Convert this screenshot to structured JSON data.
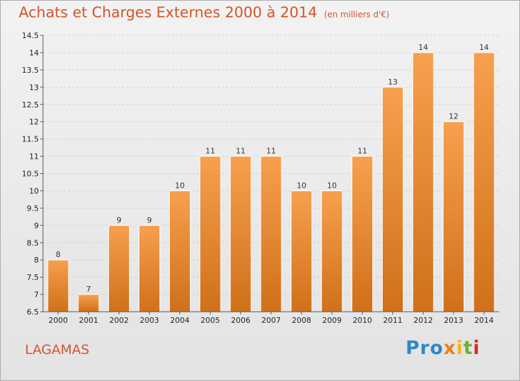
{
  "title": "Achats et Charges Externes 2000 à 2014",
  "unit": "(en milliers d'€)",
  "commune": "LAGAMAS",
  "logo_parts": [
    "Pro",
    "x",
    "i",
    "t",
    "i"
  ],
  "colors": {
    "bar_light": "#f7a04e",
    "bar_dark": "#d0701a",
    "title": "#d4552a"
  },
  "chart_data": {
    "type": "bar",
    "categories": [
      "2000",
      "2001",
      "2002",
      "2003",
      "2004",
      "2005",
      "2006",
      "2007",
      "2008",
      "2009",
      "2010",
      "2011",
      "2012",
      "2013",
      "2014"
    ],
    "values": [
      8,
      7,
      9,
      9,
      10,
      11,
      11,
      11,
      10,
      10,
      11,
      13,
      14,
      12,
      14
    ],
    "ylim": [
      6.5,
      14.5
    ],
    "yticks": [
      6.5,
      7,
      7.5,
      8,
      8.5,
      9,
      9.5,
      10,
      10.5,
      11,
      11.5,
      12,
      12.5,
      13,
      13.5,
      14,
      14.5
    ],
    "grid": true,
    "title": "Achats et Charges Externes 2000 à 2014",
    "xlabel": "",
    "ylabel": ""
  }
}
